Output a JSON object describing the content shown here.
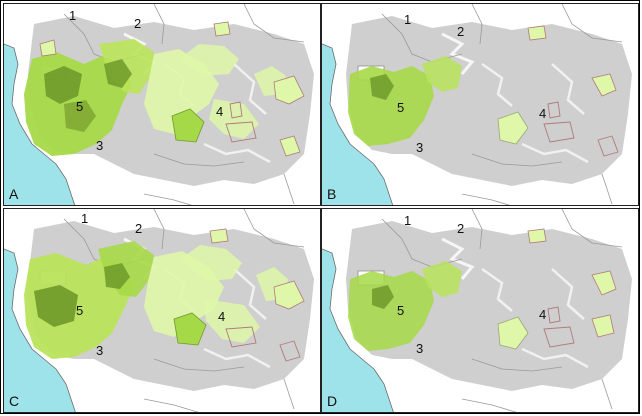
{
  "panels": [
    {
      "letter": "A",
      "labels": {
        "r1": "1",
        "r2": "2",
        "r3": "3",
        "r4": "4",
        "r5": "5"
      }
    },
    {
      "letter": "B",
      "labels": {
        "r1": "1",
        "r2": "2",
        "r3": "3",
        "r4": "4",
        "r5": "5"
      }
    },
    {
      "letter": "C",
      "labels": {
        "r1": "1",
        "r2": "2",
        "r3": "3",
        "r4": "4",
        "r5": "5"
      }
    },
    {
      "letter": "D",
      "labels": {
        "r1": "1",
        "r2": "2",
        "r3": "3",
        "r4": "4",
        "r5": "5"
      }
    }
  ],
  "colors": {
    "ocean": "#9fe3ea",
    "land": "#ffffff",
    "forest": "#cfcfcf",
    "boundary": "#9a9a9a",
    "light_green": "#dff7a8",
    "mid_green": "#a6d948",
    "dark_green": "#6f9a2a",
    "protected_area": "#b07a7a"
  }
}
